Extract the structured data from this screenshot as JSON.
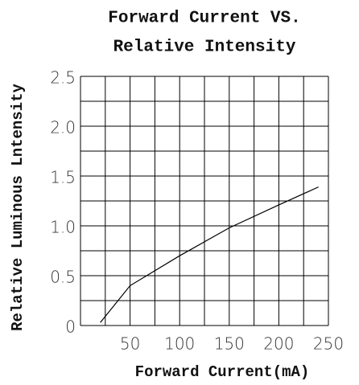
{
  "chart_data": {
    "type": "line",
    "title": [
      "Forward Current VS.",
      "Relative Intensity"
    ],
    "xlabel": "Forward Current(mA)",
    "ylabel": "Relative Luminous Lntensity",
    "x": [
      20,
      50,
      100,
      150,
      200,
      240
    ],
    "series": [
      {
        "color": "#000000",
        "values": [
          0.03,
          0.4,
          0.7,
          0.98,
          1.21,
          1.39
        ]
      }
    ],
    "xlim": [
      0,
      250
    ],
    "ylim": [
      0,
      2.5
    ],
    "xticks": [
      50,
      100,
      150,
      200,
      250
    ],
    "yticks": [
      0,
      0.5,
      {
        "value": 1,
        "label": "1.0"
      },
      1.5,
      {
        "value": 2,
        "label": "2.0"
      },
      2.5
    ],
    "xgrid": [
      0,
      25,
      50,
      75,
      100,
      125,
      150,
      175,
      200,
      225,
      250
    ],
    "ygrid": [
      0,
      0.25,
      0.5,
      0.75,
      1,
      1.25,
      1.5,
      1.75,
      2,
      2.25,
      2.5
    ],
    "grid": true
  }
}
